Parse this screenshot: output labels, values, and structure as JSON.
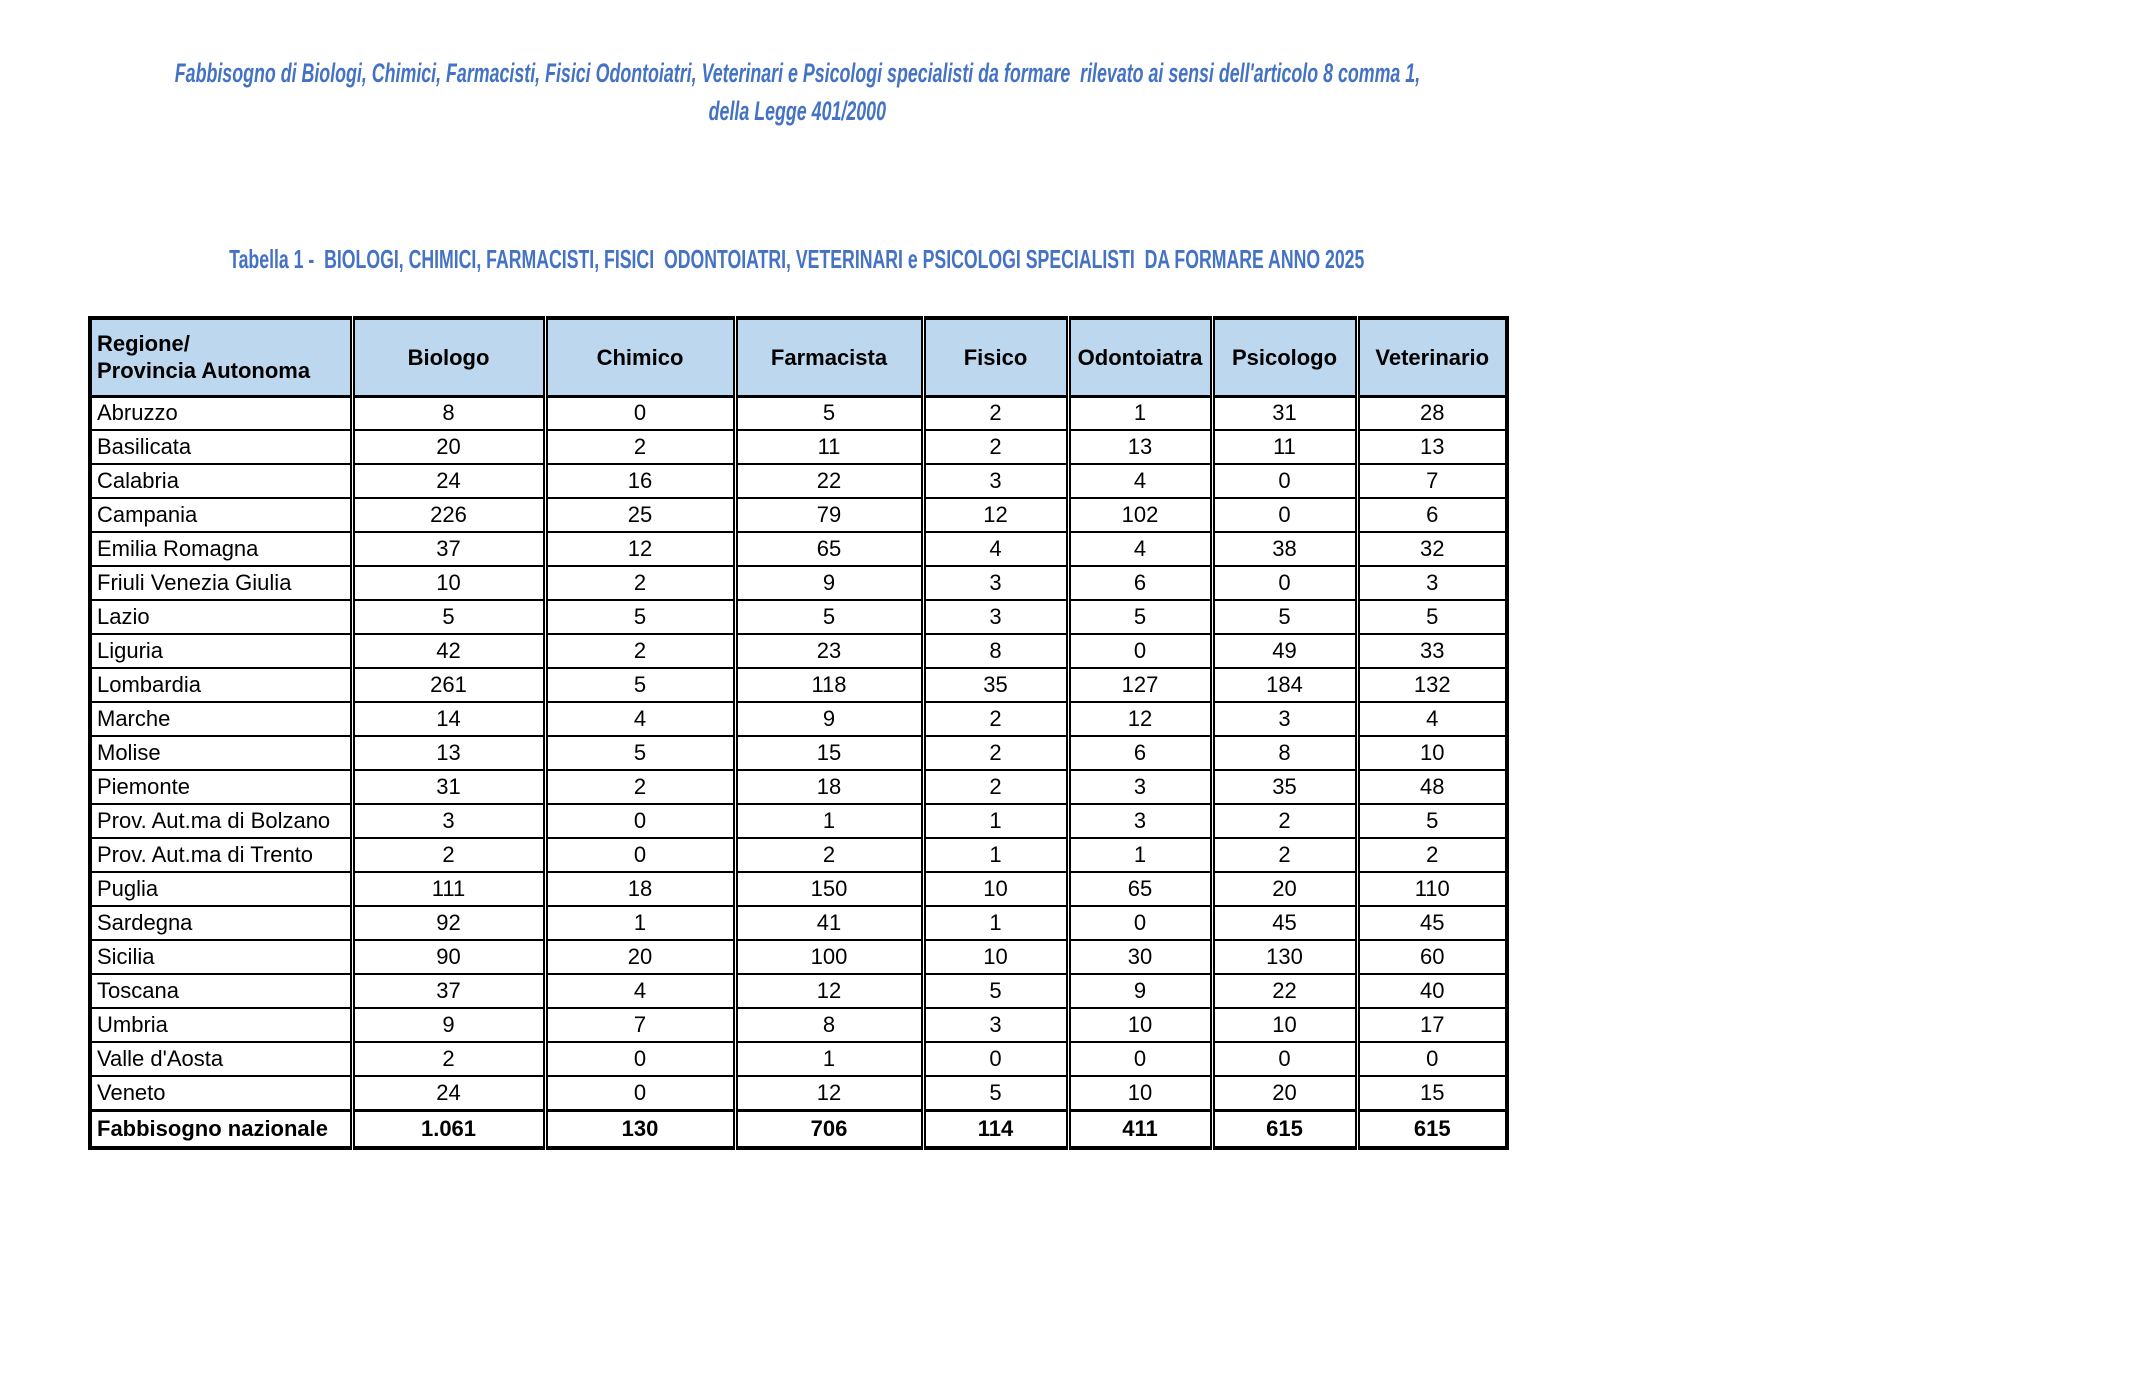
{
  "header": {
    "title_line1": "Fabbisogno di Biologi, Chimici, Farmacisti, Fisici Odontoiatri, Veterinari e Psicologi specialisti da formare  rilevato ai sensi dell'articolo 8 comma 1,",
    "title_line2": "della Legge 401/2000",
    "table_caption": "Tabella 1 -  BIOLOGI, CHIMICI, FARMACISTI, FISICI  ODONTOIATRI, VETERINARI e PSICOLOGI SPECIALISTI  DA FORMARE ANNO 2025"
  },
  "colors": {
    "accent": "#4472C4",
    "table_header_bg": "#BDD7EE",
    "border": "#000000"
  },
  "table": {
    "region_header_line1": "Regione/",
    "region_header_line2": "Provincia Autonoma",
    "columns": [
      "Biologo",
      "Chimico",
      "Farmacista",
      "Fisico",
      "Odontoiatra",
      "Psicologo",
      "Veterinario"
    ],
    "rows": [
      {
        "region": "Abruzzo",
        "values": [
          8,
          0,
          5,
          2,
          1,
          31,
          28
        ]
      },
      {
        "region": "Basilicata",
        "values": [
          20,
          2,
          11,
          2,
          13,
          11,
          13
        ]
      },
      {
        "region": "Calabria",
        "values": [
          24,
          16,
          22,
          3,
          4,
          0,
          7
        ]
      },
      {
        "region": "Campania",
        "values": [
          226,
          25,
          79,
          12,
          102,
          0,
          6
        ]
      },
      {
        "region": "Emilia Romagna",
        "values": [
          37,
          12,
          65,
          4,
          4,
          38,
          32
        ]
      },
      {
        "region": "Friuli Venezia Giulia",
        "values": [
          10,
          2,
          9,
          3,
          6,
          0,
          3
        ]
      },
      {
        "region": "Lazio",
        "values": [
          5,
          5,
          5,
          3,
          5,
          5,
          5
        ]
      },
      {
        "region": "Liguria",
        "values": [
          42,
          2,
          23,
          8,
          0,
          49,
          33
        ]
      },
      {
        "region": "Lombardia",
        "values": [
          261,
          5,
          118,
          35,
          127,
          184,
          132
        ]
      },
      {
        "region": "Marche",
        "values": [
          14,
          4,
          9,
          2,
          12,
          3,
          4
        ]
      },
      {
        "region": "Molise",
        "values": [
          13,
          5,
          15,
          2,
          6,
          8,
          10
        ]
      },
      {
        "region": "Piemonte",
        "values": [
          31,
          2,
          18,
          2,
          3,
          35,
          48
        ]
      },
      {
        "region": "Prov. Aut.ma di Bolzano",
        "values": [
          3,
          0,
          1,
          1,
          3,
          2,
          5
        ]
      },
      {
        "region": "Prov. Aut.ma di Trento",
        "values": [
          2,
          0,
          2,
          1,
          1,
          2,
          2
        ]
      },
      {
        "region": "Puglia",
        "values": [
          111,
          18,
          150,
          10,
          65,
          20,
          110
        ]
      },
      {
        "region": "Sardegna",
        "values": [
          92,
          1,
          41,
          1,
          0,
          45,
          45
        ]
      },
      {
        "region": "Sicilia",
        "values": [
          90,
          20,
          100,
          10,
          30,
          130,
          60
        ]
      },
      {
        "region": "Toscana",
        "values": [
          37,
          4,
          12,
          5,
          9,
          22,
          40
        ]
      },
      {
        "region": "Umbria",
        "values": [
          9,
          7,
          8,
          3,
          10,
          10,
          17
        ]
      },
      {
        "region": "Valle d'Aosta",
        "values": [
          2,
          0,
          1,
          0,
          0,
          0,
          0
        ]
      },
      {
        "region": "Veneto",
        "values": [
          24,
          0,
          12,
          5,
          10,
          20,
          15
        ]
      }
    ],
    "total": {
      "label": "Fabbisogno nazionale",
      "values": [
        "1.061",
        "130",
        "706",
        "114",
        "411",
        "615",
        "615"
      ]
    }
  }
}
